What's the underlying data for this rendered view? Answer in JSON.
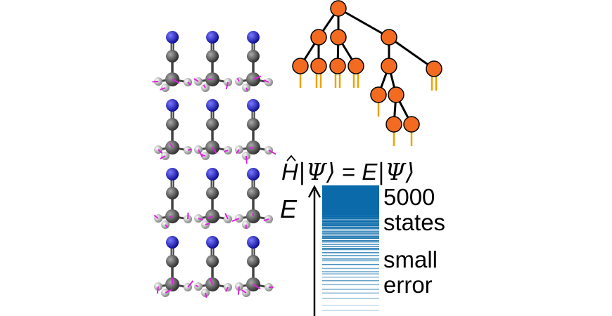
{
  "equation": {
    "lhs_operator": "H",
    "lhs_state": "|Ψ⟩",
    "equals": "=",
    "rhs_energy": "E",
    "rhs_state": "|Ψ⟩"
  },
  "energy_axis_label": "E",
  "annotations": {
    "count_line1": "5000",
    "count_line2": "states",
    "error_line1": "small",
    "error_line2": "error"
  },
  "colors": {
    "nitrogen": "#1a1acc",
    "carbon": "#555555",
    "hydrogen": "#bbbbbb",
    "displacement_arrows": "#dd22dd",
    "tree_nodes": "#f26b21",
    "tree_legs": "#f0a000",
    "energy_levels": "#0a6aaa"
  },
  "molecule_grid": {
    "rows": 4,
    "columns": 3
  }
}
